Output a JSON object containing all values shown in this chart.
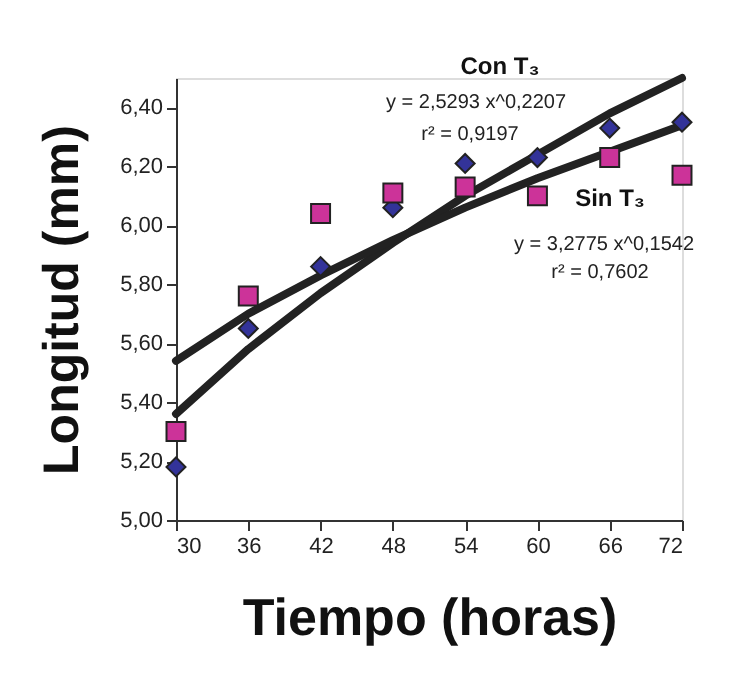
{
  "chart_data": {
    "type": "scatter",
    "xlabel": "Tiempo (horas)",
    "ylabel": "Longitud (mm)",
    "xlim": [
      30,
      72
    ],
    "xticks": [
      30,
      36,
      42,
      48,
      54,
      60,
      66,
      72
    ],
    "ylim": [
      5.0,
      6.5
    ],
    "yticks": [
      {
        "value": 5.0,
        "label": "5,00"
      },
      {
        "value": 5.2,
        "label": "5,20"
      },
      {
        "value": 5.4,
        "label": "5,40"
      },
      {
        "value": 5.6,
        "label": "5,60"
      },
      {
        "value": 5.8,
        "label": "5,80"
      },
      {
        "value": 6.0,
        "label": "6,00"
      },
      {
        "value": 6.2,
        "label": "6,20"
      },
      {
        "value": 6.4,
        "label": "6,40"
      }
    ],
    "grid": false,
    "legend": false,
    "series": [
      {
        "type": "line",
        "color": "#222222",
        "line_style": "solid",
        "marker": "none",
        "x": [
          30,
          36,
          42,
          48,
          54,
          60,
          66,
          72
        ],
        "values": [
          5.36,
          5.58,
          5.77,
          5.94,
          6.1,
          6.24,
          6.38,
          6.5
        ]
      },
      {
        "type": "line",
        "color": "#222222",
        "line_style": "solid",
        "marker": "none",
        "x": [
          30,
          36,
          42,
          48,
          54,
          60,
          66,
          72
        ],
        "values": [
          5.54,
          5.7,
          5.83,
          5.95,
          6.06,
          6.16,
          6.25,
          6.34
        ]
      },
      {
        "name": "Con T₃",
        "color": "#333399",
        "marker": "diamond",
        "x": [
          30,
          36,
          42,
          48,
          54,
          60,
          66,
          72
        ],
        "values": [
          5.18,
          5.65,
          5.86,
          6.06,
          6.21,
          6.23,
          6.33,
          6.35
        ]
      },
      {
        "name": "Sin T₃",
        "color": "#cc3399",
        "marker": "square",
        "x": [
          30,
          36,
          42,
          48,
          54,
          60,
          66,
          72
        ],
        "values": [
          5.3,
          5.76,
          6.04,
          6.11,
          6.13,
          6.1,
          6.23,
          6.17
        ]
      }
    ],
    "annotations": [
      "y = 2,5293 x^0,2207",
      "r² = 0,9197",
      "y = 3,2775 x^0,1542",
      "r² = 0,7602"
    ]
  }
}
